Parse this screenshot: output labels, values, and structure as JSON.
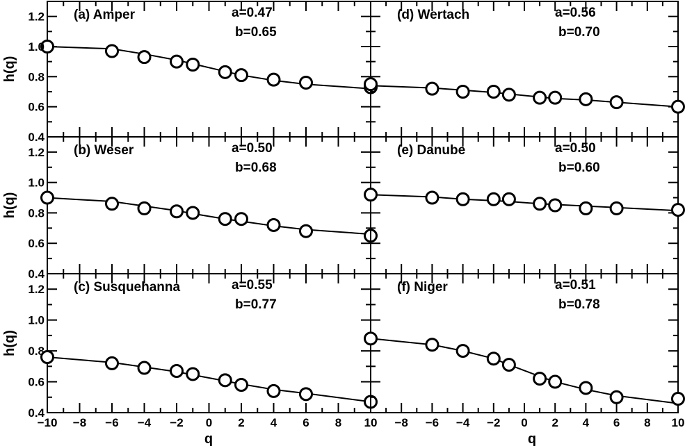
{
  "chart_data": {
    "type": "scatter",
    "layout": "3x2 panels",
    "shared_x": {
      "label": "q",
      "range": [
        -10,
        10
      ],
      "ticks": [
        -10,
        -8,
        -6,
        -4,
        -2,
        0,
        2,
        4,
        6,
        8,
        10
      ],
      "tick_labels_left": [
        "−10",
        "−8",
        "−6",
        "−4",
        "−2",
        "0",
        "2",
        "4",
        "6",
        "8",
        "10"
      ],
      "tick_labels_right": [
        "",
        "−8",
        "−6",
        "−4",
        "−2",
        "0",
        "2",
        "4",
        "6",
        "8",
        "10"
      ]
    },
    "shared_y": {
      "label": "h(q)",
      "range": [
        0.4,
        1.3
      ],
      "ticks": [
        0.4,
        0.6,
        0.8,
        1.0,
        1.2
      ],
      "tick_labels": [
        "0.4",
        "0.6",
        "0.8",
        "1.0",
        "1.2"
      ]
    },
    "markers": "open circles",
    "fit": "solid line",
    "panels": [
      {
        "label": "(a) Amper",
        "a_label": "a=0.47",
        "b_label": "b=0.65",
        "x": [
          -10,
          -6,
          -4,
          -2,
          -1,
          1,
          2,
          4,
          6,
          10
        ],
        "y": [
          1.0,
          0.97,
          0.93,
          0.9,
          0.88,
          0.83,
          0.81,
          0.78,
          0.76,
          0.73
        ],
        "fit_y": [
          1.0,
          0.985,
          0.95,
          0.91,
          0.885,
          0.835,
          0.81,
          0.775,
          0.75,
          0.72
        ]
      },
      {
        "label": "(b) Weser",
        "a_label": "a=0.50",
        "b_label": "b=0.68",
        "x": [
          -10,
          -6,
          -4,
          -2,
          -1,
          1,
          2,
          4,
          6,
          10
        ],
        "y": [
          0.9,
          0.86,
          0.83,
          0.81,
          0.8,
          0.76,
          0.76,
          0.72,
          0.68,
          0.65
        ],
        "fit_y": [
          0.9,
          0.875,
          0.845,
          0.815,
          0.795,
          0.76,
          0.745,
          0.715,
          0.69,
          0.66
        ]
      },
      {
        "label": "(c) Susquehanna",
        "a_label": "a=0.55",
        "b_label": "b=0.77",
        "x": [
          -10,
          -6,
          -4,
          -2,
          -1,
          1,
          2,
          4,
          6,
          10
        ],
        "y": [
          0.76,
          0.72,
          0.69,
          0.67,
          0.65,
          0.61,
          0.58,
          0.54,
          0.52,
          0.47
        ],
        "fit_y": [
          0.76,
          0.725,
          0.695,
          0.665,
          0.645,
          0.605,
          0.585,
          0.55,
          0.525,
          0.47
        ]
      },
      {
        "label": "(d) Wertach",
        "a_label": "a=0.56",
        "b_label": "b=0.70",
        "x": [
          -10,
          -6,
          -4,
          -2,
          -1,
          1,
          2,
          4,
          6,
          10
        ],
        "y": [
          0.75,
          0.72,
          0.7,
          0.7,
          0.68,
          0.66,
          0.66,
          0.65,
          0.63,
          0.6
        ],
        "fit_y": [
          0.74,
          0.725,
          0.71,
          0.695,
          0.685,
          0.665,
          0.655,
          0.645,
          0.63,
          0.6
        ]
      },
      {
        "label": "(e) Danube",
        "a_label": "a=0.50",
        "b_label": "b=0.60",
        "x": [
          -10,
          -6,
          -4,
          -2,
          -1,
          1,
          2,
          4,
          6,
          10
        ],
        "y": [
          0.92,
          0.9,
          0.89,
          0.89,
          0.89,
          0.86,
          0.85,
          0.83,
          0.83,
          0.82
        ],
        "fit_y": [
          0.92,
          0.905,
          0.89,
          0.88,
          0.875,
          0.86,
          0.855,
          0.845,
          0.835,
          0.815
        ]
      },
      {
        "label": "(f) Niger",
        "a_label": "a=0.51",
        "b_label": "b=0.78",
        "x": [
          -10,
          -6,
          -4,
          -2,
          -1,
          1,
          2,
          4,
          6,
          10
        ],
        "y": [
          0.88,
          0.84,
          0.8,
          0.75,
          0.71,
          0.62,
          0.6,
          0.56,
          0.5,
          0.49
        ],
        "fit_y": [
          0.88,
          0.84,
          0.8,
          0.75,
          0.71,
          0.635,
          0.6,
          0.55,
          0.51,
          0.46
        ]
      }
    ]
  }
}
